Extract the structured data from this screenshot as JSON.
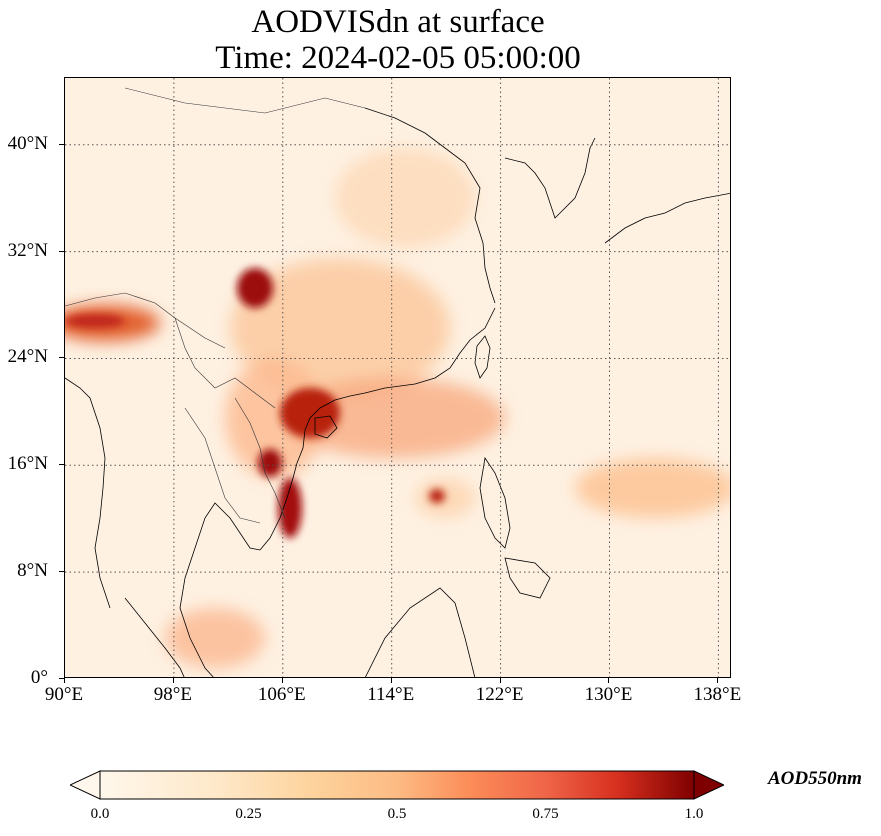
{
  "title": {
    "line1": "AODVISdn at surface",
    "line2": "Time: 2024-02-05 05:00:00"
  },
  "map": {
    "lon_range": [
      90,
      139
    ],
    "lat_range": [
      0,
      45
    ],
    "gridlines": "dotted",
    "lat_ticks": [
      {
        "value": 0,
        "label": "0°"
      },
      {
        "value": 8,
        "label": "8°N"
      },
      {
        "value": 16,
        "label": "16°N"
      },
      {
        "value": 24,
        "label": "24°N"
      },
      {
        "value": 32,
        "label": "32°N"
      },
      {
        "value": 40,
        "label": "40°N"
      }
    ],
    "lon_ticks": [
      {
        "value": 90,
        "label": "90°E"
      },
      {
        "value": 98,
        "label": "98°E"
      },
      {
        "value": 106,
        "label": "106°E"
      },
      {
        "value": 114,
        "label": "114°E"
      },
      {
        "value": 122,
        "label": "122°E"
      },
      {
        "value": 130,
        "label": "130°E"
      },
      {
        "value": 138,
        "label": "138°E"
      }
    ],
    "colormap": "OrRd",
    "colors": {
      "background_low": "#fff5e9",
      "mid": "#fdae6b",
      "high": "#d7301f",
      "max": "#7f0000",
      "coastline": "#000000"
    }
  },
  "colorbar": {
    "label": "AOD550nm",
    "ticks": [
      {
        "value": 0.0,
        "label": "0.0"
      },
      {
        "value": 0.25,
        "label": "0.25"
      },
      {
        "value": 0.5,
        "label": "0.5"
      },
      {
        "value": 0.75,
        "label": "0.75"
      },
      {
        "value": 1.0,
        "label": "1.0"
      }
    ],
    "range": [
      0.0,
      1.0
    ],
    "extend": "both"
  }
}
